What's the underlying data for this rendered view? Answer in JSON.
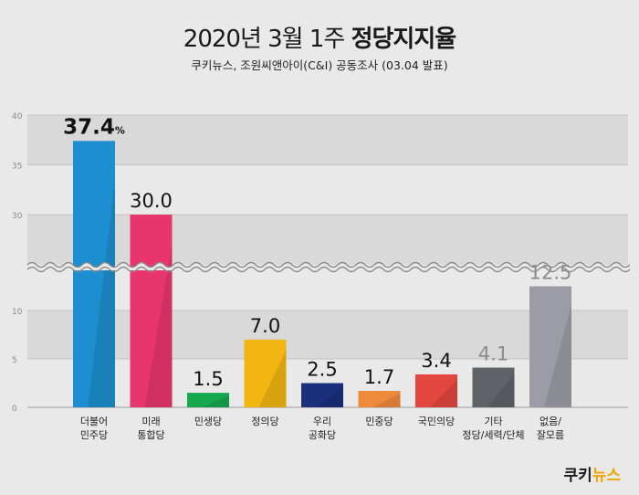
{
  "header": {
    "title_main": "2020년 3월 1주",
    "title_bold": "정당지지율",
    "subtitle": "쿠키뉴스, 조원씨앤아이(C&I) 공동조사 (03.04 발표)"
  },
  "logo": {
    "part1": "쿠키",
    "part2": "뉴스"
  },
  "chart_data": {
    "type": "bar",
    "categories": [
      "더불어\n민주당",
      "미래\n통합당",
      "민생당",
      "정의당",
      "우리\n공화당",
      "민중당",
      "국민의당",
      "기타\n정당/세력/단체",
      "없음/\n잘모름"
    ],
    "values": [
      37.4,
      30.0,
      1.5,
      7.0,
      2.5,
      1.7,
      3.4,
      4.1,
      12.5
    ],
    "value_labels": [
      "37.4",
      "30.0",
      "1.5",
      "7.0",
      "2.5",
      "1.7",
      "3.4",
      "4.1",
      "12.5"
    ],
    "first_label_suffix": "%",
    "colors": [
      "#1d8fd0",
      "#e8356d",
      "#16a84f",
      "#f2b511",
      "#1b2f7c",
      "#ee8a3c",
      "#e3463f",
      "#5f6368",
      "#9c9ca6"
    ],
    "label_colors": [
      "#111111",
      "#111111",
      "#111111",
      "#111111",
      "#111111",
      "#111111",
      "#111111",
      "#8a8a92",
      "#8a8a92"
    ],
    "yticks": [
      0,
      5,
      10,
      30,
      35,
      40
    ],
    "ylim": [
      0,
      40
    ],
    "axis_break": [
      14,
      25
    ],
    "grid": true
  }
}
